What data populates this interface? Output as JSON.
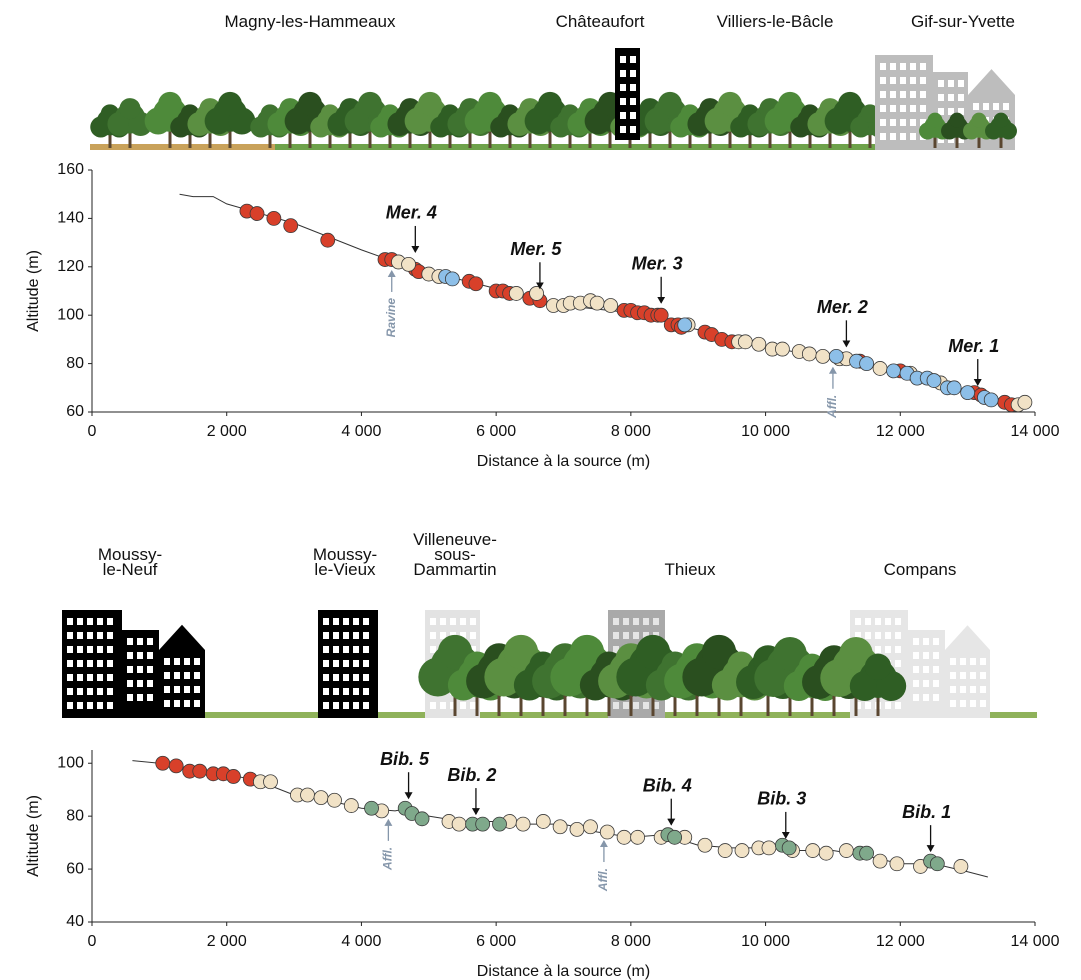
{
  "chart_data": [
    {
      "type": "scatter",
      "places": [
        "Magny-les-Hammeaux",
        "Châteaufort",
        "Villiers-le-Bâcle",
        "Gif-sur-Yvette"
      ],
      "x_label": "Distance à la source (m)",
      "y_label": "Altitude (m)",
      "xlim": [
        0,
        14000
      ],
      "ylim": [
        60,
        160
      ],
      "xticks": [
        0,
        {
          "value": 2000,
          "label": "2 000"
        },
        {
          "value": 4000,
          "label": "4 000"
        },
        {
          "value": 6000,
          "label": "6 000"
        },
        {
          "value": 8000,
          "label": "8 000"
        },
        {
          "value": 10000,
          "label": "10 000"
        },
        {
          "value": 12000,
          "label": "12 000"
        },
        {
          "value": 14000,
          "label": "14 000"
        }
      ],
      "yticks": [
        60,
        80,
        100,
        120,
        140,
        160
      ],
      "profile": {
        "x": [
          1300,
          1500,
          1800,
          2000,
          3000,
          4000,
          4500,
          5000,
          6000,
          6700,
          7000,
          8000,
          9000,
          10000,
          11000,
          12000,
          13000,
          13500,
          13800
        ],
        "y": [
          150,
          149,
          149,
          146,
          138,
          127,
          122,
          118,
          111,
          106,
          104,
          101,
          94,
          87,
          82,
          76,
          68,
          64,
          63
        ]
      },
      "series": [
        {
          "color": "#d8402a",
          "x": [
            2300,
            2450,
            2700,
            2950,
            3500,
            4350,
            4450,
            4800,
            4850,
            5600,
            5700,
            6000,
            6100,
            6200,
            6500,
            6650,
            7900,
            8000,
            8100,
            8200,
            8300,
            8400,
            8450,
            8600,
            8700,
            8750,
            9100,
            9200,
            9350,
            9500,
            11400,
            12000,
            13100,
            13200,
            13550,
            13650
          ],
          "values": [
            143,
            142,
            140,
            137,
            131,
            123,
            123,
            119,
            118,
            114,
            113,
            110,
            110,
            109,
            107,
            106,
            102,
            102,
            101,
            101,
            100,
            100,
            100,
            96,
            96,
            95,
            93,
            92,
            90,
            89,
            81,
            77,
            68,
            67,
            64,
            63
          ]
        },
        {
          "color": "#f1e2c6",
          "x": [
            4550,
            4700,
            5000,
            5150,
            6300,
            6600,
            6850,
            7000,
            7100,
            7250,
            7400,
            7500,
            7700,
            8850,
            9600,
            9700,
            9900,
            10100,
            10250,
            10500,
            10650,
            10850,
            11100,
            11200,
            11700,
            12150,
            12600,
            13750,
            13850
          ],
          "values": [
            122,
            121,
            117,
            116,
            109,
            109,
            104,
            104,
            105,
            105,
            106,
            105,
            104,
            96,
            89,
            89,
            88,
            86,
            86,
            85,
            84,
            83,
            82,
            82,
            78,
            76,
            72,
            63,
            64
          ]
        },
        {
          "color": "#8dbfe8",
          "x": [
            5250,
            5350,
            8800,
            11050,
            11350,
            11500,
            11900,
            12100,
            12250,
            12400,
            12500,
            12700,
            12800,
            13000,
            13250,
            13350
          ],
          "values": [
            116,
            115,
            96,
            83,
            81,
            80,
            77,
            76,
            74,
            74,
            73,
            70,
            70,
            68,
            66,
            65
          ]
        }
      ],
      "annotations": [
        {
          "text": "Mer. 4",
          "x": 4800,
          "y": 122
        },
        {
          "text": "Mer. 5",
          "x": 6650,
          "y": 107
        },
        {
          "text": "Mer. 3",
          "x": 8450,
          "y": 101
        },
        {
          "text": "Mer. 2",
          "x": 11200,
          "y": 83
        },
        {
          "text": "Mer. 1",
          "x": 13150,
          "y": 67
        }
      ],
      "side_annotations": [
        {
          "text": "Ravine",
          "x": 4450,
          "y": 122
        },
        {
          "text": "Affl.",
          "x": 11000,
          "y": 82
        }
      ]
    },
    {
      "type": "scatter",
      "places": [
        "Moussy-\nle-Neuf",
        "Moussy-\nle-Vieux",
        "Villeneuve-\nsous-\nDammartin",
        "Thieux",
        "Compans"
      ],
      "x_label": "Distance à la source (m)",
      "y_label": "Altitude (m)",
      "xlim": [
        0,
        14000
      ],
      "ylim": [
        40,
        105
      ],
      "xticks": [
        0,
        {
          "value": 2000,
          "label": "2 000"
        },
        {
          "value": 4000,
          "label": "4 000"
        },
        {
          "value": 6000,
          "label": "6 000"
        },
        {
          "value": 8000,
          "label": "8 000"
        },
        {
          "value": 10000,
          "label": "10 000"
        },
        {
          "value": 12000,
          "label": "12 000"
        },
        {
          "value": 14000,
          "label": "14 000"
        }
      ],
      "yticks": [
        40,
        60,
        80,
        100
      ],
      "profile": {
        "x": [
          600,
          1000,
          1500,
          2000,
          2500,
          3000,
          3500,
          4000,
          4500,
          4700,
          5000,
          5500,
          6000,
          6500,
          7000,
          7500,
          8000,
          8500,
          9000,
          9500,
          10000,
          10500,
          11000,
          11500,
          12000,
          12500,
          13000,
          13300
        ],
        "y": [
          101,
          100,
          98,
          96,
          93,
          88,
          86,
          83,
          82,
          83,
          80,
          78,
          78,
          77,
          77,
          74,
          72,
          73,
          69,
          68,
          68,
          67,
          67,
          65,
          62,
          62,
          59,
          57
        ]
      },
      "series": [
        {
          "color": "#d8402a",
          "x": [
            1050,
            1250,
            1450,
            1600,
            1800,
            1950,
            2100,
            2350
          ],
          "values": [
            100,
            99,
            97,
            97,
            96,
            96,
            95,
            94
          ]
        },
        {
          "color": "#f1e2c6",
          "x": [
            2500,
            2650,
            3050,
            3200,
            3400,
            3600,
            3850,
            4300,
            5300,
            5450,
            6200,
            6400,
            6700,
            6950,
            7200,
            7400,
            7650,
            7900,
            8100,
            8450,
            8800,
            9100,
            9400,
            9650,
            9900,
            10050,
            10400,
            10700,
            10900,
            11200,
            11700,
            11950,
            12300,
            12900
          ],
          "values": [
            93,
            93,
            88,
            88,
            87,
            86,
            84,
            82,
            78,
            77,
            78,
            77,
            78,
            76,
            75,
            76,
            74,
            72,
            72,
            72,
            72,
            69,
            67,
            67,
            68,
            68,
            67,
            67,
            66,
            67,
            63,
            62,
            61,
            61
          ]
        },
        {
          "color": "#7fa98b",
          "x": [
            4150,
            4650,
            4750,
            4900,
            5650,
            5800,
            6050,
            8550,
            8650,
            10250,
            10350,
            11400,
            11500,
            12450,
            12550
          ],
          "values": [
            83,
            83,
            81,
            79,
            77,
            77,
            77,
            73,
            72,
            69,
            68,
            66,
            66,
            63,
            62
          ]
        }
      ],
      "annotations": [
        {
          "text": "Bib. 5",
          "x": 4700,
          "y": 83
        },
        {
          "text": "Bib. 2",
          "x": 5700,
          "y": 77
        },
        {
          "text": "Bib. 4",
          "x": 8600,
          "y": 73
        },
        {
          "text": "Bib. 3",
          "x": 10300,
          "y": 68
        },
        {
          "text": "Bib. 1",
          "x": 12450,
          "y": 63
        }
      ],
      "side_annotations": [
        {
          "text": "Affl.",
          "x": 4400,
          "y": 82
        },
        {
          "text": "Affl.",
          "x": 7600,
          "y": 74
        }
      ]
    }
  ]
}
